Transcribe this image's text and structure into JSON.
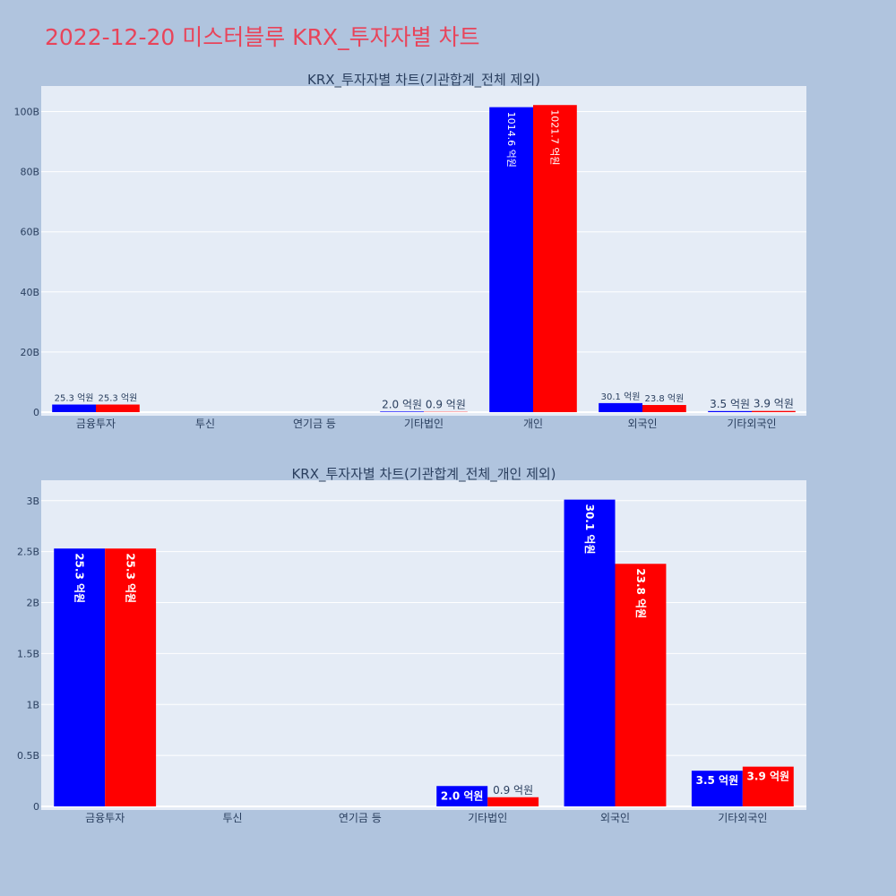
{
  "page": {
    "title": "2022-12-20 미스터블루 KRX_투자자별 차트"
  },
  "colors": {
    "background": "#b0c4de",
    "plot_bg": "#e5ecf6",
    "title": "#e8445a",
    "series_a": "#0000ff",
    "series_b": "#ff0000"
  },
  "chart_data": [
    {
      "type": "bar",
      "title": "KRX_투자자별 차트(기관합계_전체 제외)",
      "categories": [
        "금융투자",
        "투신",
        "연기금 등",
        "기타법인",
        "개인",
        "외국인",
        "기타외국인"
      ],
      "series": [
        {
          "color": "#0000ff",
          "values": [
            2530000000,
            0,
            0,
            200000000,
            101460000000,
            3010000000,
            350000000
          ],
          "labels": [
            "25.3 억원",
            "",
            "",
            "2.0 억원",
            "1014.6 억원",
            "30.1 억원",
            "3.5 억원"
          ]
        },
        {
          "color": "#ff0000",
          "values": [
            2530000000,
            0,
            0,
            90000000,
            102170000000,
            2380000000,
            390000000
          ],
          "labels": [
            "25.3 억원",
            "",
            "",
            "0.9 억원",
            "1021.7 억원",
            "23.8 억원",
            "3.9 억원"
          ]
        }
      ],
      "yticks": [
        0,
        20000000000,
        40000000000,
        60000000000,
        80000000000,
        100000000000
      ],
      "ytick_labels": [
        "0",
        "20B",
        "40B",
        "60B",
        "80B",
        "100B"
      ],
      "ylim": [
        0,
        108500000000
      ],
      "grid": true,
      "legend": "none"
    },
    {
      "type": "bar",
      "title": "KRX_투자자별 차트(기관합계_전체_개인 제외)",
      "categories": [
        "금융투자",
        "투신",
        "연기금 등",
        "기타법인",
        "외국인",
        "기타외국인"
      ],
      "series": [
        {
          "color": "#0000ff",
          "values": [
            2530000000,
            0,
            0,
            200000000,
            3010000000,
            350000000
          ],
          "labels": [
            "25.3 억원",
            "",
            "",
            "2.0 억원",
            "30.1 억원",
            "3.5 억원"
          ]
        },
        {
          "color": "#ff0000",
          "values": [
            2530000000,
            0,
            0,
            90000000,
            2380000000,
            390000000
          ],
          "labels": [
            "25.3 억원",
            "",
            "",
            "0.9 억원",
            "23.8 억원",
            "3.9 억원"
          ]
        }
      ],
      "yticks": [
        0,
        500000000,
        1000000000,
        1500000000,
        2000000000,
        2500000000,
        3000000000
      ],
      "ytick_labels": [
        "0",
        "0.5B",
        "1B",
        "1.5B",
        "2B",
        "2.5B",
        "3B"
      ],
      "ylim": [
        0,
        3200000000
      ],
      "grid": true,
      "legend": "none"
    }
  ]
}
